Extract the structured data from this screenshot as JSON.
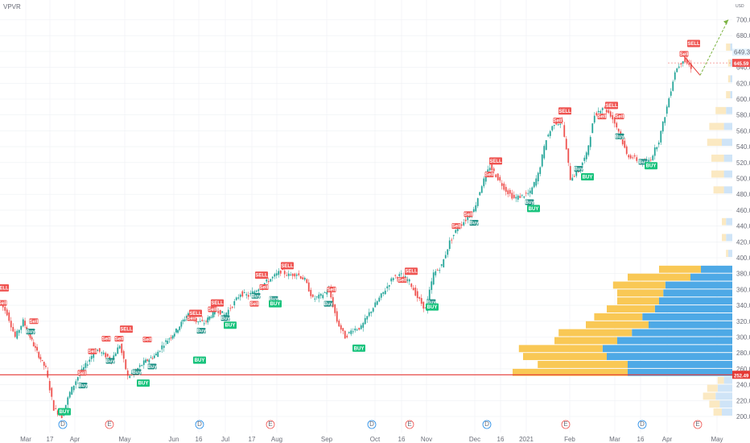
{
  "chart_data": {
    "type": "candlestick",
    "title": "VPVR",
    "y_axis": {
      "min": 190,
      "max": 720,
      "ticks": [
        200,
        220,
        240,
        260,
        280,
        300,
        320,
        340,
        360,
        380,
        400,
        420,
        440,
        460,
        480,
        500,
        520,
        540,
        560,
        580,
        600,
        620,
        640,
        660,
        680,
        700
      ],
      "top_label": "USD"
    },
    "x_axis": {
      "ticks": [
        "Mar",
        "17",
        "Apr",
        "May",
        "Jun",
        "16",
        "Jul",
        "17",
        "Aug",
        "Sep",
        "Oct",
        "16",
        "Nov",
        "Dec",
        "16",
        "2021",
        "Feb",
        "Mar",
        "16",
        "Apr",
        "May"
      ]
    },
    "price_path": [
      [
        0,
        345
      ],
      [
        10,
        330
      ],
      [
        20,
        300
      ],
      [
        30,
        320
      ],
      [
        45,
        285
      ],
      [
        58,
        260
      ],
      [
        68,
        210
      ],
      [
        78,
        200
      ],
      [
        88,
        230
      ],
      [
        98,
        250
      ],
      [
        110,
        268
      ],
      [
        120,
        285
      ],
      [
        130,
        278
      ],
      [
        140,
        272
      ],
      [
        150,
        290
      ],
      [
        160,
        250
      ],
      [
        170,
        258
      ],
      [
        180,
        268
      ],
      [
        195,
        278
      ],
      [
        205,
        292
      ],
      [
        220,
        308
      ],
      [
        235,
        330
      ],
      [
        245,
        320
      ],
      [
        255,
        318
      ],
      [
        270,
        335
      ],
      [
        280,
        328
      ],
      [
        290,
        340
      ],
      [
        300,
        355
      ],
      [
        310,
        352
      ],
      [
        320,
        360
      ],
      [
        330,
        368
      ],
      [
        340,
        375
      ],
      [
        350,
        383
      ],
      [
        360,
        378
      ],
      [
        370,
        380
      ],
      [
        380,
        372
      ],
      [
        390,
        348
      ],
      [
        400,
        352
      ],
      [
        410,
        360
      ],
      [
        420,
        320
      ],
      [
        430,
        300
      ],
      [
        440,
        310
      ],
      [
        450,
        312
      ],
      [
        460,
        330
      ],
      [
        470,
        345
      ],
      [
        480,
        360
      ],
      [
        490,
        376
      ],
      [
        500,
        378
      ],
      [
        510,
        370
      ],
      [
        520,
        350
      ],
      [
        530,
        335
      ],
      [
        540,
        380
      ],
      [
        550,
        390
      ],
      [
        560,
        420
      ],
      [
        570,
        438
      ],
      [
        580,
        448
      ],
      [
        590,
        460
      ],
      [
        600,
        492
      ],
      [
        610,
        515
      ],
      [
        620,
        500
      ],
      [
        630,
        485
      ],
      [
        640,
        475
      ],
      [
        650,
        478
      ],
      [
        660,
        482
      ],
      [
        670,
        505
      ],
      [
        680,
        550
      ],
      [
        690,
        570
      ],
      [
        700,
        570
      ],
      [
        710,
        500
      ],
      [
        720,
        510
      ],
      [
        730,
        530
      ],
      [
        740,
        580
      ],
      [
        750,
        590
      ],
      [
        760,
        580
      ],
      [
        770,
        560
      ],
      [
        780,
        530
      ],
      [
        790,
        525
      ],
      [
        800,
        518
      ],
      [
        810,
        525
      ],
      [
        820,
        548
      ],
      [
        830,
        590
      ],
      [
        840,
        635
      ],
      [
        850,
        650
      ],
      [
        860,
        640
      ]
    ],
    "current_price": 645.59,
    "price_tags": [
      "649.32",
      "645.59",
      "252.49"
    ],
    "support_level": 252.49,
    "projection": [
      [
        845,
        660
      ],
      [
        870,
        630
      ],
      [
        905,
        700
      ]
    ],
    "volume_profile": [
      {
        "price": 200,
        "buy": 0.05,
        "sell": 0.04,
        "dim": true
      },
      {
        "price": 210,
        "buy": 0.06,
        "sell": 0.05,
        "dim": true
      },
      {
        "price": 220,
        "buy": 0.08,
        "sell": 0.06,
        "dim": true
      },
      {
        "price": 230,
        "buy": 0.07,
        "sell": 0.05,
        "dim": true
      },
      {
        "price": 240,
        "buy": 0.04,
        "sell": 0.03,
        "dim": true
      },
      {
        "price": 250,
        "buy": 0.5,
        "sell": 0.55
      },
      {
        "price": 260,
        "buy": 0.5,
        "sell": 0.43
      },
      {
        "price": 270,
        "buy": 0.6,
        "sell": 0.4
      },
      {
        "price": 280,
        "buy": 0.62,
        "sell": 0.4
      },
      {
        "price": 290,
        "buy": 0.55,
        "sell": 0.3
      },
      {
        "price": 300,
        "buy": 0.48,
        "sell": 0.35
      },
      {
        "price": 310,
        "buy": 0.4,
        "sell": 0.3
      },
      {
        "price": 320,
        "buy": 0.43,
        "sell": 0.23
      },
      {
        "price": 330,
        "buy": 0.37,
        "sell": 0.23
      },
      {
        "price": 340,
        "buy": 0.35,
        "sell": 0.2
      },
      {
        "price": 350,
        "buy": 0.33,
        "sell": 0.22
      },
      {
        "price": 360,
        "buy": 0.32,
        "sell": 0.25
      },
      {
        "price": 370,
        "buy": 0.2,
        "sell": 0.3
      },
      {
        "price": 380,
        "buy": 0.15,
        "sell": 0.2
      },
      {
        "price": 400,
        "buy": 0.02,
        "sell": 0.01,
        "dim": true
      },
      {
        "price": 420,
        "buy": 0.03,
        "sell": 0.02,
        "dim": true
      },
      {
        "price": 440,
        "buy": 0.03,
        "sell": 0.02,
        "dim": true
      },
      {
        "price": 480,
        "buy": 0.04,
        "sell": 0.05,
        "dim": true
      },
      {
        "price": 500,
        "buy": 0.04,
        "sell": 0.06,
        "dim": true
      },
      {
        "price": 520,
        "buy": 0.04,
        "sell": 0.06,
        "dim": true
      },
      {
        "price": 540,
        "buy": 0.05,
        "sell": 0.07,
        "dim": true
      },
      {
        "price": 560,
        "buy": 0.04,
        "sell": 0.07,
        "dim": true
      },
      {
        "price": 580,
        "buy": 0.03,
        "sell": 0.05,
        "dim": true
      },
      {
        "price": 600,
        "buy": 0.01,
        "sell": 0.02,
        "dim": true
      },
      {
        "price": 620,
        "buy": 0.01,
        "sell": 0.01,
        "dim": true
      },
      {
        "price": 640,
        "buy": 0.01,
        "sell": 0.01,
        "dim": true
      },
      {
        "price": 660,
        "buy": 0.01,
        "sell": 0.02,
        "dim": true
      }
    ],
    "signals": [
      {
        "x": 3,
        "price": 362,
        "type": "SELL"
      },
      {
        "x": 3,
        "price": 343,
        "type": "Sell"
      },
      {
        "x": 42,
        "price": 320,
        "type": "Sell"
      },
      {
        "x": 38,
        "price": 307,
        "type": "Buy"
      },
      {
        "x": 80,
        "price": 206,
        "type": "BUY"
      },
      {
        "x": 102,
        "price": 255,
        "type": "Sell"
      },
      {
        "x": 103,
        "price": 239,
        "type": "Buy"
      },
      {
        "x": 115,
        "price": 282,
        "type": "Sell"
      },
      {
        "x": 132,
        "price": 298,
        "type": "Sell"
      },
      {
        "x": 137,
        "price": 270,
        "type": "Buy"
      },
      {
        "x": 157,
        "price": 310,
        "type": "SELL"
      },
      {
        "x": 148,
        "price": 298,
        "type": "Sell"
      },
      {
        "x": 170,
        "price": 256,
        "type": "Buy"
      },
      {
        "x": 178,
        "price": 242,
        "type": "BUY"
      },
      {
        "x": 183,
        "price": 297,
        "type": "Sell"
      },
      {
        "x": 189,
        "price": 263,
        "type": "Buy"
      },
      {
        "x": 238,
        "price": 324,
        "type": "Sell"
      },
      {
        "x": 243,
        "price": 330,
        "type": "SELL"
      },
      {
        "x": 248,
        "price": 271,
        "type": "BUY"
      },
      {
        "x": 250,
        "price": 308,
        "type": "Buy"
      },
      {
        "x": 264,
        "price": 335,
        "type": "Sell"
      },
      {
        "x": 270,
        "price": 343,
        "type": "SELL"
      },
      {
        "x": 280,
        "price": 324,
        "type": "Buy"
      },
      {
        "x": 286,
        "price": 315,
        "type": "BUY"
      },
      {
        "x": 318,
        "price": 352,
        "type": "Buy"
      },
      {
        "x": 316,
        "price": 342,
        "type": "Sell"
      },
      {
        "x": 325,
        "price": 378,
        "type": "SELL"
      },
      {
        "x": 328,
        "price": 363,
        "type": "Sell"
      },
      {
        "x": 340,
        "price": 348,
        "type": "Buy"
      },
      {
        "x": 342,
        "price": 342,
        "type": "BUY"
      },
      {
        "x": 357,
        "price": 390,
        "type": "SELL"
      },
      {
        "x": 412,
        "price": 360,
        "type": "Sell"
      },
      {
        "x": 408,
        "price": 342,
        "type": "Buy"
      },
      {
        "x": 446,
        "price": 286,
        "type": "BUY"
      },
      {
        "x": 511,
        "price": 383,
        "type": "SELL"
      },
      {
        "x": 500,
        "price": 372,
        "type": "Sell"
      },
      {
        "x": 536,
        "price": 344,
        "type": "Buy"
      },
      {
        "x": 537,
        "price": 338,
        "type": "BUY"
      },
      {
        "x": 567,
        "price": 440,
        "type": "Sell"
      },
      {
        "x": 582,
        "price": 455,
        "type": "Sell"
      },
      {
        "x": 589,
        "price": 444,
        "type": "Buy"
      },
      {
        "x": 616,
        "price": 522,
        "type": "SELL"
      },
      {
        "x": 608,
        "price": 505,
        "type": "Sell"
      },
      {
        "x": 658,
        "price": 470,
        "type": "Buy"
      },
      {
        "x": 663,
        "price": 462,
        "type": "BUY"
      },
      {
        "x": 702,
        "price": 585,
        "type": "SELL"
      },
      {
        "x": 693,
        "price": 573,
        "type": "Sell"
      },
      {
        "x": 730,
        "price": 502,
        "type": "BUY"
      },
      {
        "x": 719,
        "price": 512,
        "type": "Buy"
      },
      {
        "x": 760,
        "price": 592,
        "type": "SELL"
      },
      {
        "x": 748,
        "price": 578,
        "type": "Sell"
      },
      {
        "x": 770,
        "price": 578,
        "type": "Sell"
      },
      {
        "x": 770,
        "price": 553,
        "type": "Buy"
      },
      {
        "x": 799,
        "price": 521,
        "type": "Buy"
      },
      {
        "x": 809,
        "price": 516,
        "type": "BUY"
      },
      {
        "x": 862,
        "price": 670,
        "type": "SELL"
      },
      {
        "x": 850,
        "price": 657,
        "type": "Sell"
      }
    ],
    "event_markers": [
      {
        "x": 78,
        "type": "D"
      },
      {
        "x": 136,
        "type": "E"
      },
      {
        "x": 248,
        "type": "D"
      },
      {
        "x": 336,
        "type": "E"
      },
      {
        "x": 462,
        "type": "D"
      },
      {
        "x": 509,
        "type": "E"
      },
      {
        "x": 605,
        "type": "D"
      },
      {
        "x": 703,
        "type": "E"
      },
      {
        "x": 798,
        "type": "D"
      },
      {
        "x": 867,
        "type": "E"
      }
    ],
    "colors": {
      "up": "#26a69a",
      "down": "#ef5350",
      "sell": "#ef5350",
      "buy": "#1b8f84",
      "buy_big": "#19c37d",
      "vp_buy": "#4ea9e6",
      "vp_sell": "#f9c855",
      "vp_buy_dim": "#cfe4f7",
      "vp_sell_dim": "#fbe9c2",
      "support": "#e53935",
      "projection": "#7cb342",
      "current": "#ef5350",
      "grid": "#eef0f3"
    }
  }
}
